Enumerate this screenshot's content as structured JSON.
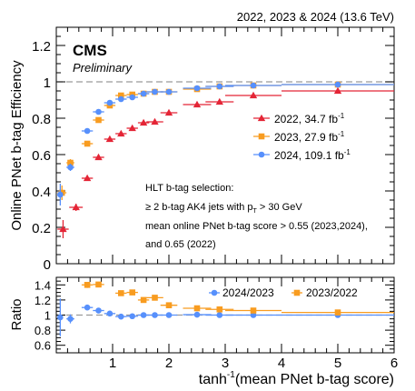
{
  "chart_data": [
    {
      "type": "scatter",
      "top_right_label": "2022, 2023 & 2024 (13.6 TeV)",
      "cms_label": "CMS",
      "preliminary_label": "Preliminary",
      "ylabel": "Online PNet b-tag Efficiency",
      "xlim": [
        0,
        6
      ],
      "ylim": [
        0,
        1.3
      ],
      "yticks": [
        "0",
        "0.2",
        "0.4",
        "0.6",
        "0.8",
        "1",
        "1.2"
      ],
      "reference_line": 1.0,
      "legend_position": "right",
      "legend": [
        {
          "name": "2022, 34.7 fb",
          "superscript": "-1",
          "color": "#e42536"
        },
        {
          "name": "2023, 27.9 fb",
          "superscript": "-1",
          "color": "#f89c20"
        },
        {
          "name": "2024, 109.1 fb",
          "superscript": "-1",
          "color": "#5790fc"
        }
      ],
      "annotation_lines": [
        "HLT b-tag selection:",
        "≥ 2 b-tag AK4 jets with p",
        "T",
        " > 30 GeV",
        "mean online PNet b-tag score > 0.55 (2023,2024),",
        "and 0.65 (2022)"
      ],
      "series": [
        {
          "name": "2022, 34.7 fb-1",
          "color": "#e42536",
          "marker": "triangle",
          "points": [
            {
              "x": 0.12,
              "xerr": 0.1,
              "y": 0.19,
              "yerr": 0.05
            },
            {
              "x": 0.35,
              "xerr": 0.12,
              "y": 0.31,
              "yerr": 0.02
            },
            {
              "x": 0.55,
              "xerr": 0.1,
              "y": 0.47,
              "yerr": 0.01
            },
            {
              "x": 0.75,
              "xerr": 0.1,
              "y": 0.585,
              "yerr": 0.008
            },
            {
              "x": 0.95,
              "xerr": 0.1,
              "y": 0.685,
              "yerr": 0.006
            },
            {
              "x": 1.15,
              "xerr": 0.1,
              "y": 0.715,
              "yerr": 0.006
            },
            {
              "x": 1.35,
              "xerr": 0.1,
              "y": 0.745,
              "yerr": 0.005
            },
            {
              "x": 1.55,
              "xerr": 0.1,
              "y": 0.775,
              "yerr": 0.005
            },
            {
              "x": 1.75,
              "xerr": 0.15,
              "y": 0.78,
              "yerr": 0.005
            },
            {
              "x": 2.0,
              "xerr": 0.15,
              "y": 0.83,
              "yerr": 0.004
            },
            {
              "x": 2.5,
              "xerr": 0.25,
              "y": 0.875,
              "yerr": 0.004
            },
            {
              "x": 2.9,
              "xerr": 0.25,
              "y": 0.89,
              "yerr": 0.004
            },
            {
              "x": 3.5,
              "xerr": 0.5,
              "y": 0.925,
              "yerr": 0.004
            },
            {
              "x": 5.0,
              "xerr": 1.0,
              "y": 0.95,
              "yerr": 0.004
            }
          ]
        },
        {
          "name": "2023, 27.9 fb-1",
          "color": "#f89c20",
          "marker": "square",
          "points": [
            {
              "x": 0.1,
              "xerr": 0.08,
              "y": 0.39,
              "yerr": 0.04
            },
            {
              "x": 0.25,
              "xerr": 0.07,
              "y": 0.555,
              "yerr": 0.02
            },
            {
              "x": 0.55,
              "xerr": 0.1,
              "y": 0.66,
              "yerr": 0.01
            },
            {
              "x": 0.75,
              "xerr": 0.1,
              "y": 0.79,
              "yerr": 0.008
            },
            {
              "x": 0.95,
              "xerr": 0.1,
              "y": 0.87,
              "yerr": 0.006
            },
            {
              "x": 1.15,
              "xerr": 0.1,
              "y": 0.925,
              "yerr": 0.005
            },
            {
              "x": 1.35,
              "xerr": 0.1,
              "y": 0.93,
              "yerr": 0.005
            },
            {
              "x": 1.55,
              "xerr": 0.1,
              "y": 0.935,
              "yerr": 0.005
            },
            {
              "x": 1.75,
              "xerr": 0.15,
              "y": 0.945,
              "yerr": 0.004
            },
            {
              "x": 2.0,
              "xerr": 0.15,
              "y": 0.945,
              "yerr": 0.004
            },
            {
              "x": 2.5,
              "xerr": 0.25,
              "y": 0.96,
              "yerr": 0.004
            },
            {
              "x": 2.9,
              "xerr": 0.25,
              "y": 0.975,
              "yerr": 0.004
            },
            {
              "x": 3.5,
              "xerr": 0.5,
              "y": 0.98,
              "yerr": 0.004
            },
            {
              "x": 5.0,
              "xerr": 1.0,
              "y": 0.985,
              "yerr": 0.004
            }
          ]
        },
        {
          "name": "2024, 109.1 fb-1",
          "color": "#5790fc",
          "marker": "circle",
          "points": [
            {
              "x": 0.07,
              "xerr": 0.05,
              "y": 0.38,
              "yerr": 0.06
            },
            {
              "x": 0.25,
              "xerr": 0.07,
              "y": 0.53,
              "yerr": 0.02
            },
            {
              "x": 0.55,
              "xerr": 0.1,
              "y": 0.73,
              "yerr": 0.01
            },
            {
              "x": 0.75,
              "xerr": 0.1,
              "y": 0.835,
              "yerr": 0.008
            },
            {
              "x": 0.95,
              "xerr": 0.1,
              "y": 0.885,
              "yerr": 0.006
            },
            {
              "x": 1.15,
              "xerr": 0.1,
              "y": 0.905,
              "yerr": 0.005
            },
            {
              "x": 1.35,
              "xerr": 0.1,
              "y": 0.915,
              "yerr": 0.005
            },
            {
              "x": 1.55,
              "xerr": 0.1,
              "y": 0.935,
              "yerr": 0.004
            },
            {
              "x": 1.75,
              "xerr": 0.15,
              "y": 0.945,
              "yerr": 0.004
            },
            {
              "x": 2.0,
              "xerr": 0.15,
              "y": 0.945,
              "yerr": 0.004
            },
            {
              "x": 2.5,
              "xerr": 0.25,
              "y": 0.965,
              "yerr": 0.004
            },
            {
              "x": 2.9,
              "xerr": 0.25,
              "y": 0.975,
              "yerr": 0.004
            },
            {
              "x": 3.5,
              "xerr": 0.5,
              "y": 0.98,
              "yerr": 0.004
            },
            {
              "x": 5.0,
              "xerr": 1.0,
              "y": 0.985,
              "yerr": 0.004
            }
          ]
        }
      ]
    },
    {
      "type": "scatter",
      "ylabel": "Ratio",
      "xlabel_main": "tanh",
      "xlabel_sup": "-1",
      "xlabel_rest": "(mean PNet b-tag score)",
      "xlim": [
        0,
        6
      ],
      "xticks": [
        "1",
        "2",
        "3",
        "4",
        "5",
        "6"
      ],
      "ylim": [
        0.5,
        1.5
      ],
      "yticks": [
        "0.6",
        "0.8",
        "1",
        "1.2",
        "1.4"
      ],
      "reference_line": 1.0,
      "legend": [
        {
          "name": "2024/2023",
          "color": "#5790fc"
        },
        {
          "name": "2023/2022",
          "color": "#f89c20"
        }
      ],
      "series": [
        {
          "name": "2024/2023",
          "color": "#5790fc",
          "marker": "circle",
          "points": [
            {
              "x": 0.07,
              "xerr": 0.05,
              "y": 0.97,
              "yerr": 0.25
            },
            {
              "x": 0.25,
              "xerr": 0.07,
              "y": 0.95,
              "yerr": 0.06
            },
            {
              "x": 0.55,
              "xerr": 0.1,
              "y": 1.1,
              "yerr": 0.03
            },
            {
              "x": 0.75,
              "xerr": 0.1,
              "y": 1.06,
              "yerr": 0.015
            },
            {
              "x": 0.95,
              "xerr": 0.1,
              "y": 1.02,
              "yerr": 0.01
            },
            {
              "x": 1.15,
              "xerr": 0.1,
              "y": 0.98,
              "yerr": 0.01
            },
            {
              "x": 1.35,
              "xerr": 0.1,
              "y": 0.985,
              "yerr": 0.01
            },
            {
              "x": 1.55,
              "xerr": 0.1,
              "y": 1.0,
              "yerr": 0.01
            },
            {
              "x": 1.75,
              "xerr": 0.15,
              "y": 1.0,
              "yerr": 0.008
            },
            {
              "x": 2.0,
              "xerr": 0.15,
              "y": 1.0,
              "yerr": 0.008
            },
            {
              "x": 2.5,
              "xerr": 0.25,
              "y": 1.005,
              "yerr": 0.006
            },
            {
              "x": 2.9,
              "xerr": 0.25,
              "y": 1.0,
              "yerr": 0.006
            },
            {
              "x": 3.5,
              "xerr": 0.5,
              "y": 1.0,
              "yerr": 0.005
            },
            {
              "x": 5.0,
              "xerr": 1.0,
              "y": 1.0,
              "yerr": 0.005
            }
          ]
        },
        {
          "name": "2023/2022",
          "color": "#f89c20",
          "marker": "square",
          "points": [
            {
              "x": 0.55,
              "xerr": 0.1,
              "y": 1.4,
              "yerr": 0.04
            },
            {
              "x": 0.75,
              "xerr": 0.1,
              "y": 1.405,
              "yerr": 0.02
            },
            {
              "x": 1.15,
              "xerr": 0.1,
              "y": 1.29,
              "yerr": 0.015
            },
            {
              "x": 1.35,
              "xerr": 0.1,
              "y": 1.3,
              "yerr": 0.012
            },
            {
              "x": 1.55,
              "xerr": 0.1,
              "y": 1.2,
              "yerr": 0.01
            },
            {
              "x": 1.75,
              "xerr": 0.15,
              "y": 1.23,
              "yerr": 0.01
            },
            {
              "x": 2.0,
              "xerr": 0.15,
              "y": 1.13,
              "yerr": 0.008
            },
            {
              "x": 2.5,
              "xerr": 0.25,
              "y": 1.09,
              "yerr": 0.006
            },
            {
              "x": 2.9,
              "xerr": 0.25,
              "y": 1.075,
              "yerr": 0.006
            },
            {
              "x": 3.5,
              "xerr": 0.5,
              "y": 1.06,
              "yerr": 0.005
            },
            {
              "x": 5.0,
              "xerr": 1.0,
              "y": 1.035,
              "yerr": 0.005
            }
          ]
        }
      ]
    }
  ]
}
